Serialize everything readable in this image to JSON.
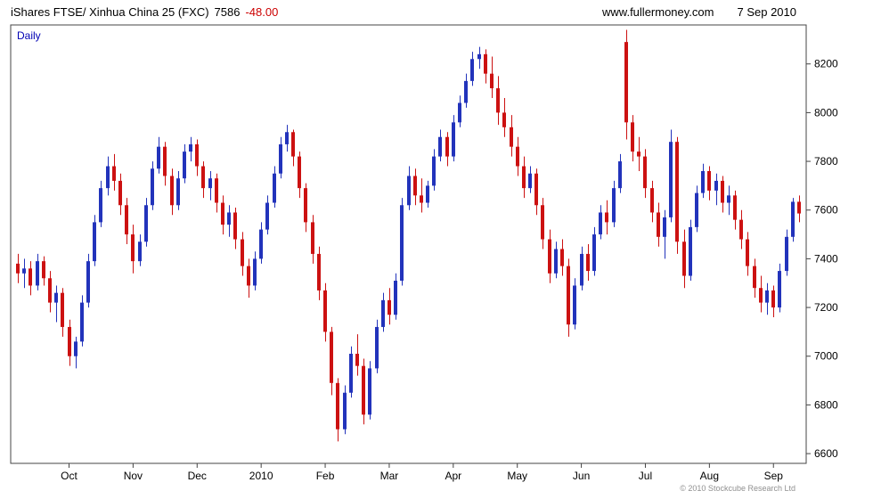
{
  "header": {
    "title": "iShares FTSE/ Xinhua China 25 (FXC)",
    "last_price": "7586",
    "change": "-48.00",
    "website": "www.fullermoney.com",
    "date": "7 Sep 2010"
  },
  "chart": {
    "timeframe": "Daily"
  },
  "footer": {
    "copyright": "© 2010 Stockcube Research Ltd"
  },
  "chart_data": {
    "type": "candlestick",
    "title": "iShares FTSE/ Xinhua China 25 (FXC)",
    "timeframe": "Daily",
    "last_price": 7586,
    "change": -48.0,
    "legend_position": "none",
    "grid": false,
    "y_axis_side": "right",
    "y_ticks": [
      8200,
      8000,
      7800,
      7600,
      7400,
      7200,
      7000,
      6800,
      6600
    ],
    "y_range": [
      6560,
      8360
    ],
    "up_color": "#2233bb",
    "down_color": "#cc1111",
    "months": [
      {
        "label": "Oct",
        "i": 8
      },
      {
        "label": "Nov",
        "i": 18
      },
      {
        "label": "Dec",
        "i": 28
      },
      {
        "label": "2010",
        "i": 38
      },
      {
        "label": "Feb",
        "i": 48
      },
      {
        "label": "Mar",
        "i": 58
      },
      {
        "label": "Apr",
        "i": 68
      },
      {
        "label": "May",
        "i": 78
      },
      {
        "label": "Jun",
        "i": 88
      },
      {
        "label": "Jul",
        "i": 98
      },
      {
        "label": "Aug",
        "i": 108
      },
      {
        "label": "Sep",
        "i": 118
      }
    ],
    "candles": [
      [
        7380,
        7420,
        7300,
        7340
      ],
      [
        7340,
        7400,
        7280,
        7360
      ],
      [
        7360,
        7390,
        7250,
        7290
      ],
      [
        7290,
        7420,
        7270,
        7390
      ],
      [
        7390,
        7410,
        7290,
        7320
      ],
      [
        7320,
        7350,
        7180,
        7220
      ],
      [
        7220,
        7290,
        7140,
        7260
      ],
      [
        7260,
        7280,
        7080,
        7120
      ],
      [
        7120,
        7150,
        6960,
        7000
      ],
      [
        7000,
        7080,
        6950,
        7060
      ],
      [
        7060,
        7250,
        7040,
        7220
      ],
      [
        7220,
        7420,
        7200,
        7390
      ],
      [
        7390,
        7580,
        7370,
        7550
      ],
      [
        7550,
        7720,
        7530,
        7690
      ],
      [
        7690,
        7820,
        7660,
        7780
      ],
      [
        7780,
        7830,
        7680,
        7720
      ],
      [
        7720,
        7750,
        7580,
        7620
      ],
      [
        7620,
        7650,
        7460,
        7500
      ],
      [
        7500,
        7540,
        7340,
        7390
      ],
      [
        7390,
        7500,
        7370,
        7470
      ],
      [
        7470,
        7650,
        7450,
        7620
      ],
      [
        7620,
        7800,
        7600,
        7770
      ],
      [
        7770,
        7900,
        7750,
        7860
      ],
      [
        7860,
        7880,
        7700,
        7740
      ],
      [
        7740,
        7770,
        7580,
        7620
      ],
      [
        7620,
        7760,
        7600,
        7730
      ],
      [
        7730,
        7870,
        7710,
        7840
      ],
      [
        7840,
        7900,
        7800,
        7870
      ],
      [
        7870,
        7890,
        7740,
        7780
      ],
      [
        7780,
        7800,
        7650,
        7690
      ],
      [
        7690,
        7760,
        7640,
        7730
      ],
      [
        7730,
        7750,
        7590,
        7630
      ],
      [
        7630,
        7660,
        7500,
        7540
      ],
      [
        7540,
        7620,
        7490,
        7590
      ],
      [
        7590,
        7610,
        7440,
        7480
      ],
      [
        7480,
        7510,
        7330,
        7370
      ],
      [
        7370,
        7400,
        7240,
        7290
      ],
      [
        7290,
        7430,
        7270,
        7400
      ],
      [
        7400,
        7550,
        7380,
        7520
      ],
      [
        7520,
        7660,
        7500,
        7630
      ],
      [
        7630,
        7780,
        7610,
        7750
      ],
      [
        7750,
        7900,
        7730,
        7870
      ],
      [
        7870,
        7950,
        7840,
        7920
      ],
      [
        7920,
        7930,
        7780,
        7820
      ],
      [
        7820,
        7840,
        7650,
        7690
      ],
      [
        7690,
        7710,
        7510,
        7550
      ],
      [
        7550,
        7580,
        7380,
        7420
      ],
      [
        7420,
        7450,
        7230,
        7270
      ],
      [
        7270,
        7300,
        7060,
        7100
      ],
      [
        7100,
        7120,
        6840,
        6890
      ],
      [
        6890,
        6910,
        6650,
        6700
      ],
      [
        6700,
        6880,
        6680,
        6850
      ],
      [
        6850,
        7040,
        6830,
        7010
      ],
      [
        7010,
        7090,
        6920,
        6960
      ],
      [
        6960,
        6990,
        6720,
        6760
      ],
      [
        6760,
        6980,
        6740,
        6950
      ],
      [
        6950,
        7150,
        6930,
        7120
      ],
      [
        7120,
        7260,
        7100,
        7230
      ],
      [
        7230,
        7280,
        7130,
        7170
      ],
      [
        7170,
        7340,
        7150,
        7310
      ],
      [
        7310,
        7650,
        7290,
        7620
      ],
      [
        7620,
        7780,
        7600,
        7740
      ],
      [
        7740,
        7770,
        7620,
        7660
      ],
      [
        7660,
        7730,
        7590,
        7630
      ],
      [
        7630,
        7720,
        7610,
        7700
      ],
      [
        7700,
        7850,
        7680,
        7820
      ],
      [
        7820,
        7930,
        7800,
        7900
      ],
      [
        7900,
        7920,
        7780,
        7820
      ],
      [
        7820,
        7990,
        7800,
        7960
      ],
      [
        7960,
        8070,
        7940,
        8040
      ],
      [
        8040,
        8160,
        8020,
        8130
      ],
      [
        8130,
        8250,
        8110,
        8220
      ],
      [
        8220,
        8270,
        8180,
        8240
      ],
      [
        8240,
        8260,
        8120,
        8160
      ],
      [
        8160,
        8230,
        8060,
        8100
      ],
      [
        8100,
        8150,
        7950,
        8000
      ],
      [
        8000,
        8060,
        7900,
        7940
      ],
      [
        7940,
        7990,
        7820,
        7860
      ],
      [
        7860,
        7900,
        7740,
        7780
      ],
      [
        7780,
        7820,
        7650,
        7690
      ],
      [
        7690,
        7780,
        7670,
        7750
      ],
      [
        7750,
        7770,
        7580,
        7620
      ],
      [
        7620,
        7650,
        7440,
        7480
      ],
      [
        7480,
        7520,
        7300,
        7340
      ],
      [
        7340,
        7470,
        7320,
        7440
      ],
      [
        7440,
        7480,
        7330,
        7370
      ],
      [
        7370,
        7400,
        7080,
        7130
      ],
      [
        7130,
        7320,
        7110,
        7290
      ],
      [
        7290,
        7450,
        7270,
        7420
      ],
      [
        7420,
        7460,
        7310,
        7350
      ],
      [
        7350,
        7530,
        7330,
        7500
      ],
      [
        7500,
        7620,
        7480,
        7590
      ],
      [
        7590,
        7640,
        7500,
        7550
      ],
      [
        7550,
        7720,
        7530,
        7690
      ],
      [
        7690,
        7830,
        7670,
        7800
      ],
      [
        8290,
        8340,
        7890,
        7960
      ],
      [
        7960,
        7990,
        7800,
        7840
      ],
      [
        7840,
        7900,
        7760,
        7820
      ],
      [
        7820,
        7850,
        7650,
        7690
      ],
      [
        7690,
        7720,
        7550,
        7590
      ],
      [
        7590,
        7630,
        7450,
        7490
      ],
      [
        7490,
        7600,
        7400,
        7570
      ],
      [
        7570,
        7930,
        7550,
        7880
      ],
      [
        7880,
        7900,
        7420,
        7470
      ],
      [
        7470,
        7520,
        7280,
        7330
      ],
      [
        7330,
        7560,
        7310,
        7530
      ],
      [
        7530,
        7700,
        7510,
        7670
      ],
      [
        7670,
        7790,
        7650,
        7760
      ],
      [
        7760,
        7780,
        7640,
        7680
      ],
      [
        7680,
        7750,
        7620,
        7720
      ],
      [
        7720,
        7740,
        7590,
        7630
      ],
      [
        7630,
        7700,
        7580,
        7660
      ],
      [
        7660,
        7680,
        7520,
        7560
      ],
      [
        7560,
        7600,
        7440,
        7480
      ],
      [
        7480,
        7510,
        7330,
        7370
      ],
      [
        7370,
        7400,
        7240,
        7280
      ],
      [
        7280,
        7330,
        7180,
        7220
      ],
      [
        7220,
        7300,
        7170,
        7270
      ],
      [
        7270,
        7290,
        7160,
        7200
      ],
      [
        7200,
        7380,
        7180,
        7350
      ],
      [
        7350,
        7520,
        7330,
        7490
      ],
      [
        7490,
        7650,
        7470,
        7634
      ],
      [
        7634,
        7660,
        7550,
        7586
      ]
    ]
  }
}
